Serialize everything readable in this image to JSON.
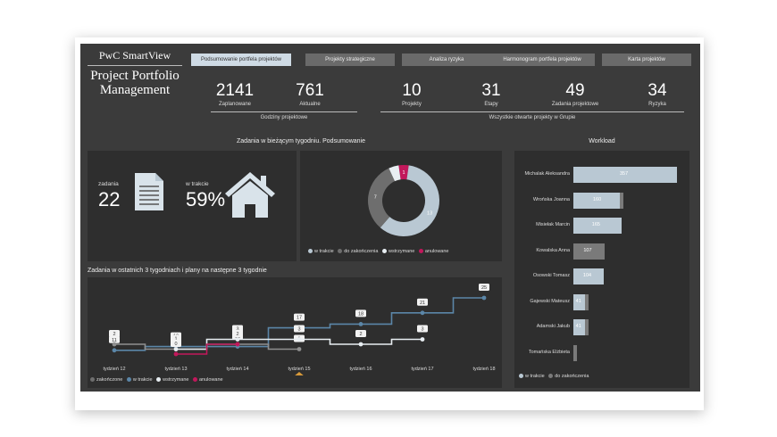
{
  "app": {
    "brand": "PwC SmartView",
    "title": "Project Portfolio Management"
  },
  "tabs": [
    {
      "label": "Podsumowanie portfela projektów",
      "active": true
    },
    {
      "label": "Projekty strategiczne"
    },
    {
      "label": "Analiza ryzyka"
    },
    {
      "label": "Harmonogram portfela projektów"
    },
    {
      "label": "Karta projektów"
    }
  ],
  "kpis": {
    "hours": {
      "group": "Godziny projektowe",
      "items": [
        {
          "value": "2141",
          "label": "Zaplanowane"
        },
        {
          "value": "761",
          "label": "Aktualne"
        }
      ]
    },
    "open": {
      "group": "Wszystkie otwarte projekty w Grupie",
      "items": [
        {
          "value": "10",
          "label": "Projekty"
        },
        {
          "value": "31",
          "label": "Etapy"
        },
        {
          "value": "49",
          "label": "Zadania projektowe"
        },
        {
          "value": "34",
          "label": "Ryzyka"
        }
      ]
    }
  },
  "week_summary": {
    "title": "Zadania w bieżącym tygodniu. Podsumowanie",
    "tasks_label": "zadania",
    "tasks_value": "22",
    "progress_label": "w trakcie",
    "progress_value": "59%"
  },
  "colors": {
    "in_progress": "#b9c8d3",
    "to_finish": "#6e6e6e",
    "suspended": "#e8eef2",
    "cancelled": "#c2185b",
    "accent": "#d89a3a"
  },
  "donut": {
    "chart_data": {
      "type": "pie",
      "values": [
        13,
        7,
        1,
        1
      ],
      "labels": [
        "w trakcie",
        "do zakończenia",
        "wstrzymane",
        "anulowane"
      ],
      "value_labels": [
        "13",
        "7",
        "",
        "1"
      ]
    },
    "legend": [
      "w trakcie",
      "do zakończenia",
      "wstrzymane",
      "anulowane"
    ]
  },
  "workload": {
    "title": "Workload",
    "legend": [
      "w trakcie",
      "do zakończenia"
    ],
    "chart_data": {
      "type": "bar",
      "categories": [
        "Michalak Aleksandra",
        "Wrońska Joanna",
        "Misiełak Marcin",
        "Kowalska Anna",
        "Osowski Tomasz",
        "Gajewski Mateusz",
        "Adamski Jakub",
        "Tomańska Elżbieta"
      ],
      "series": [
        {
          "name": "w trakcie",
          "values": [
            357,
            160,
            165,
            0,
            104,
            41,
            41,
            0
          ]
        },
        {
          "name": "do zakończenia",
          "values": [
            0,
            10,
            0,
            107,
            0,
            10,
            8,
            10
          ]
        }
      ],
      "labels": [
        "357",
        "160",
        "165",
        "107",
        "104",
        "41",
        "41",
        ""
      ],
      "xlim": [
        0,
        357
      ]
    }
  },
  "timeline": {
    "title": "Zadania w ostatnich 3 tygodniach i plany na następne 3 tygodnie",
    "legend": [
      "zakończone",
      "w trakcie",
      "wstrzymane",
      "anulowane"
    ],
    "chart_data": {
      "type": "line",
      "x": [
        "tydzień 12",
        "tydzień 13",
        "tydzień 14",
        "tydzień 15",
        "tydzień 16",
        "tydzień 17",
        "tydzień 18"
      ],
      "series": [
        {
          "name": "w trakcie",
          "values": [
            11,
            12,
            12,
            17,
            18,
            21,
            25
          ]
        },
        {
          "name": "zakończone",
          "values": [
            2,
            1,
            2,
            1,
            null,
            null,
            null
          ]
        },
        {
          "name": "wstrzymane",
          "values": [
            null,
            1,
            3,
            3,
            2,
            3,
            null
          ]
        },
        {
          "name": "anulowane",
          "values": [
            null,
            0,
            2,
            null,
            null,
            null,
            null
          ]
        }
      ],
      "current_week": "tydzień 15"
    }
  }
}
